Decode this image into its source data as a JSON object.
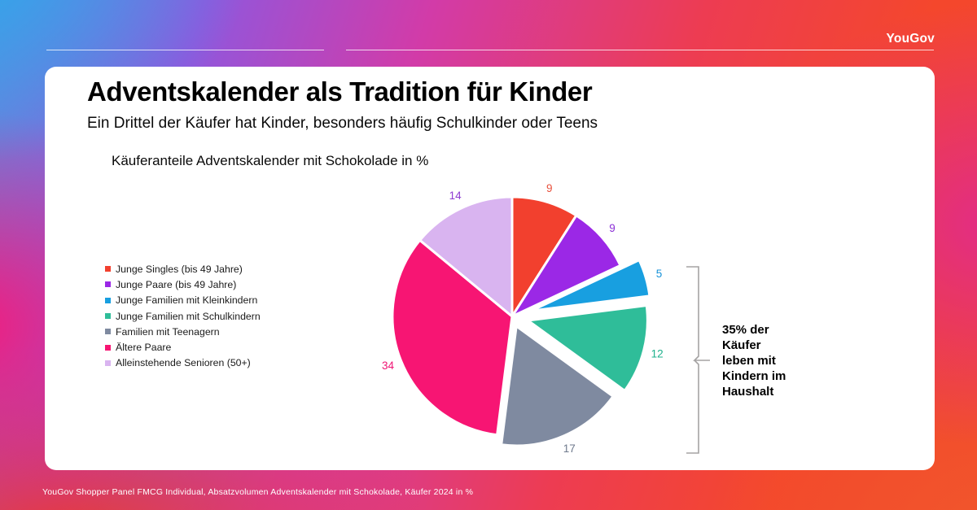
{
  "brand": {
    "logo": "YouGov"
  },
  "slide": {
    "title": "Adventskalender als Tradition für Kinder",
    "subtitle": "Ein Drittel der Käufer hat Kinder, besonders häufig Schulkinder oder Teens",
    "chart_title": "Käuferanteile Adventskalender mit Schokolade in %",
    "annotation": "35% der Käufer leben mit Kindern im Haushalt",
    "source": "YouGov Shopper Panel FMCG Individual, Absatzvolumen Adventskalender mit Schokolade, Käufer 2024 in %"
  },
  "chart_data": {
    "type": "pie",
    "title": "Käuferanteile Adventskalender mit Schokolade in %",
    "unit": "%",
    "start_angle_deg": 0,
    "direction": "clockwise",
    "legend_position": "left",
    "slices": [
      {
        "label": "Junge Singles (bis 49 Jahre)",
        "value": 9,
        "color": "#F2402E",
        "label_color": "#E8503C",
        "explode": 0
      },
      {
        "label": "Junge Paare (bis 49 Jahre)",
        "value": 9,
        "color": "#9B28E6",
        "label_color": "#8B2FD6",
        "explode": 0
      },
      {
        "label": "Junge Familien mit Kleinkindern",
        "value": 5,
        "color": "#189FE0",
        "label_color": "#1792D8",
        "explode": 24
      },
      {
        "label": "Junge Familien mit Schulkindern",
        "value": 12,
        "color": "#2FBD99",
        "label_color": "#1EB18C",
        "explode": 20
      },
      {
        "label": "Familien mit Teenagern",
        "value": 17,
        "color": "#7F8AA0",
        "label_color": "#6F7A8D",
        "explode": 13
      },
      {
        "label": "Ältere Paare",
        "value": 34,
        "color": "#F71573",
        "label_color": "#EF1474",
        "explode": 0
      },
      {
        "label": "Alleinstehende Senioren (50+)",
        "value": 14,
        "color": "#D9B4F0",
        "label_color": "#8F3CD2",
        "explode": 0
      }
    ]
  }
}
